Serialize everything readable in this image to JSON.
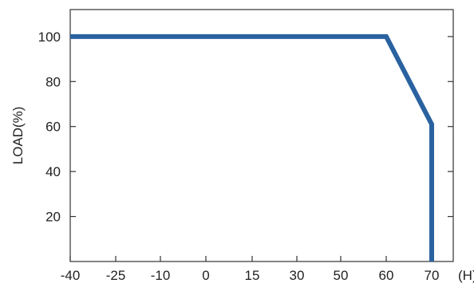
{
  "chart_data": {
    "type": "line",
    "ylabel": "LOAD(%)",
    "x_unit_label": "(H)",
    "x_ticks": [
      "-40",
      "-25",
      "-10",
      "0",
      "15",
      "30",
      "50",
      "60",
      "70"
    ],
    "y_ticks": [
      "20",
      "40",
      "60",
      "80",
      "100"
    ],
    "ylim": [
      0,
      112
    ],
    "grid": false,
    "series": [
      {
        "color": "#2a62a0",
        "points": [
          {
            "x": "-40",
            "y": 100
          },
          {
            "x": "60",
            "y": 100
          },
          {
            "x": "70",
            "y": 61
          },
          {
            "x": "70",
            "y": 0
          }
        ]
      }
    ]
  }
}
